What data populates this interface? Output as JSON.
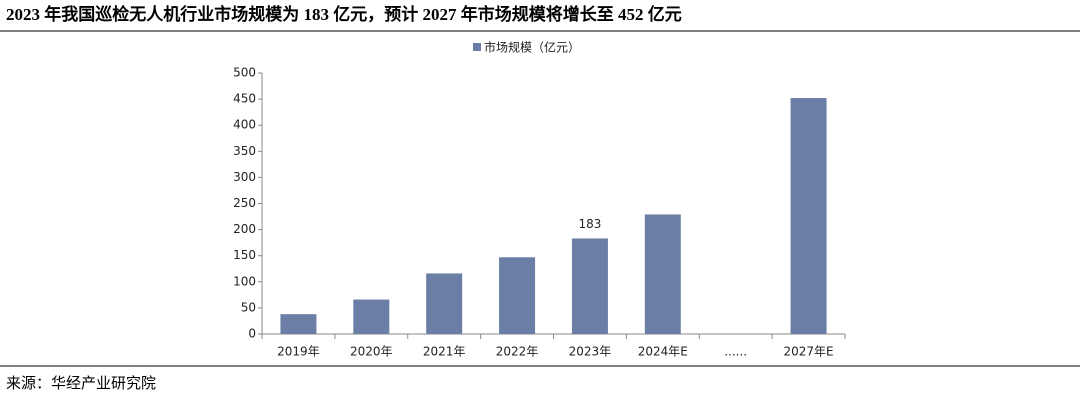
{
  "chart_data": {
    "type": "bar",
    "title": "2023 年我国巡检无人机行业市场规模为 183 亿元，预计 2027 年市场规模将增长至 452 亿元",
    "source": "来源：华经产业研究院",
    "categories": [
      "2019年",
      "2020年",
      "2021年",
      "2022年",
      "2023年",
      "2024年E",
      "......",
      "2027年E"
    ],
    "series": [
      {
        "name": "市场规模（亿元）",
        "color": "#6a7ea6",
        "values": [
          38,
          66,
          116,
          147,
          183,
          229,
          null,
          452
        ],
        "value_labels": [
          null,
          null,
          null,
          null,
          "183",
          null,
          null,
          null
        ]
      }
    ],
    "ylim": [
      0,
      500
    ],
    "yticks": [
      0,
      50,
      100,
      150,
      200,
      250,
      300,
      350,
      400,
      450,
      500
    ],
    "grid": false,
    "legend": "top"
  }
}
